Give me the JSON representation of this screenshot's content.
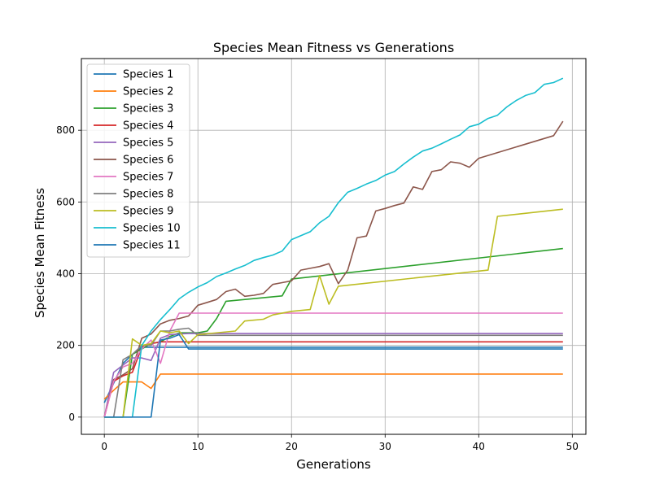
{
  "chart_data": {
    "type": "line",
    "title": "Species Mean Fitness vs Generations",
    "xlabel": "Generations",
    "ylabel": "Species Mean Fitness",
    "xlim": [
      -2.45,
      51.45
    ],
    "ylim": [
      -48,
      1000
    ],
    "xticks": [
      0,
      10,
      20,
      30,
      40,
      50
    ],
    "yticks": [
      0,
      200,
      400,
      600,
      800
    ],
    "grid": true,
    "legend_position": "upper-left",
    "series": [
      {
        "name": "Species 1",
        "color": "#1f77b4",
        "points": [
          [
            0,
            40
          ],
          [
            1,
            95
          ],
          [
            2,
            150
          ],
          [
            3,
            175
          ],
          [
            4,
            195
          ],
          [
            5,
            195
          ],
          [
            6,
            195
          ],
          [
            49,
            195
          ]
        ]
      },
      {
        "name": "Species 2",
        "color": "#ff7f0e",
        "points": [
          [
            0,
            50
          ],
          [
            1,
            75
          ],
          [
            2,
            98
          ],
          [
            3,
            98
          ],
          [
            4,
            98
          ],
          [
            5,
            80
          ],
          [
            6,
            120
          ],
          [
            49,
            120
          ]
        ]
      },
      {
        "name": "Species 3",
        "color": "#2ca02c",
        "points": [
          [
            0,
            0
          ],
          [
            1,
            0
          ],
          [
            2,
            0
          ],
          [
            3,
            175
          ],
          [
            4,
            190
          ],
          [
            5,
            205
          ],
          [
            6,
            210
          ],
          [
            7,
            225
          ],
          [
            8,
            235
          ],
          [
            9,
            235
          ],
          [
            10,
            235
          ],
          [
            11,
            240
          ],
          [
            12,
            275
          ],
          [
            13,
            323
          ],
          [
            19,
            338
          ],
          [
            20,
            385
          ],
          [
            49,
            470
          ]
        ]
      },
      {
        "name": "Species 4",
        "color": "#d62728",
        "points": [
          [
            0,
            0
          ],
          [
            1,
            100
          ],
          [
            2,
            115
          ],
          [
            3,
            125
          ],
          [
            4,
            195
          ],
          [
            5,
            205
          ],
          [
            6,
            210
          ],
          [
            7,
            210
          ],
          [
            49,
            210
          ]
        ]
      },
      {
        "name": "Species 5",
        "color": "#9467bd",
        "points": [
          [
            0,
            0
          ],
          [
            1,
            125
          ],
          [
            2,
            145
          ],
          [
            3,
            165
          ],
          [
            4,
            165
          ],
          [
            5,
            158
          ],
          [
            6,
            220
          ],
          [
            7,
            230
          ],
          [
            8,
            232
          ],
          [
            9,
            233
          ],
          [
            49,
            233
          ]
        ]
      },
      {
        "name": "Species 6",
        "color": "#8c564b",
        "points": [
          [
            0,
            0
          ],
          [
            1,
            105
          ],
          [
            2,
            118
          ],
          [
            3,
            135
          ],
          [
            4,
            220
          ],
          [
            5,
            232
          ],
          [
            6,
            260
          ],
          [
            7,
            270
          ],
          [
            8,
            275
          ],
          [
            9,
            282
          ],
          [
            10,
            312
          ],
          [
            11,
            320
          ],
          [
            12,
            328
          ],
          [
            13,
            350
          ],
          [
            14,
            357
          ],
          [
            15,
            337
          ],
          [
            16,
            340
          ],
          [
            17,
            345
          ],
          [
            18,
            370
          ],
          [
            19,
            375
          ],
          [
            20,
            380
          ],
          [
            21,
            410
          ],
          [
            22,
            415
          ],
          [
            23,
            420
          ],
          [
            24,
            428
          ],
          [
            25,
            372
          ],
          [
            26,
            410
          ],
          [
            27,
            500
          ],
          [
            28,
            505
          ],
          [
            29,
            575
          ],
          [
            30,
            582
          ],
          [
            31,
            590
          ],
          [
            32,
            597
          ],
          [
            33,
            642
          ],
          [
            34,
            635
          ],
          [
            35,
            685
          ],
          [
            36,
            690
          ],
          [
            37,
            712
          ],
          [
            38,
            708
          ],
          [
            39,
            697
          ],
          [
            40,
            722
          ],
          [
            48,
            785
          ],
          [
            49,
            825
          ]
        ]
      },
      {
        "name": "Species 7",
        "color": "#e377c2",
        "points": [
          [
            0,
            0
          ],
          [
            1,
            100
          ],
          [
            2,
            140
          ],
          [
            3,
            150
          ],
          [
            4,
            190
          ],
          [
            5,
            215
          ],
          [
            6,
            150
          ],
          [
            7,
            240
          ],
          [
            8,
            290
          ],
          [
            9,
            290
          ],
          [
            49,
            290
          ]
        ]
      },
      {
        "name": "Species 8",
        "color": "#7f7f7f",
        "points": [
          [
            0,
            0
          ],
          [
            1,
            0
          ],
          [
            2,
            160
          ],
          [
            3,
            175
          ],
          [
            4,
            200
          ],
          [
            5,
            200
          ],
          [
            6,
            240
          ],
          [
            7,
            240
          ],
          [
            8,
            245
          ],
          [
            9,
            248
          ],
          [
            10,
            228
          ],
          [
            49,
            228
          ]
        ]
      },
      {
        "name": "Species 9",
        "color": "#bcbd22",
        "points": [
          [
            0,
            0
          ],
          [
            1,
            0
          ],
          [
            2,
            0
          ],
          [
            3,
            218
          ],
          [
            4,
            200
          ],
          [
            5,
            205
          ],
          [
            6,
            240
          ],
          [
            7,
            235
          ],
          [
            8,
            240
          ],
          [
            9,
            205
          ],
          [
            10,
            230
          ],
          [
            14,
            240
          ],
          [
            15,
            268
          ],
          [
            17,
            273
          ],
          [
            18,
            285
          ],
          [
            20,
            295
          ],
          [
            22,
            300
          ],
          [
            23,
            395
          ],
          [
            24,
            315
          ],
          [
            25,
            365
          ],
          [
            41,
            410
          ],
          [
            42,
            560
          ],
          [
            49,
            580
          ]
        ]
      },
      {
        "name": "Species 10",
        "color": "#17becf",
        "points": [
          [
            0,
            0
          ],
          [
            1,
            0
          ],
          [
            2,
            0
          ],
          [
            3,
            0
          ],
          [
            4,
            200
          ],
          [
            5,
            240
          ],
          [
            6,
            272
          ],
          [
            7,
            300
          ],
          [
            8,
            330
          ],
          [
            9,
            348
          ],
          [
            10,
            363
          ],
          [
            11,
            375
          ],
          [
            12,
            392
          ],
          [
            13,
            402
          ],
          [
            14,
            413
          ],
          [
            15,
            423
          ],
          [
            16,
            437
          ],
          [
            17,
            445
          ],
          [
            18,
            452
          ],
          [
            19,
            463
          ],
          [
            20,
            495
          ],
          [
            21,
            506
          ],
          [
            22,
            517
          ],
          [
            23,
            542
          ],
          [
            24,
            560
          ],
          [
            25,
            598
          ],
          [
            26,
            627
          ],
          [
            27,
            638
          ],
          [
            28,
            650
          ],
          [
            29,
            660
          ],
          [
            30,
            675
          ],
          [
            31,
            685
          ],
          [
            32,
            706
          ],
          [
            33,
            725
          ],
          [
            34,
            742
          ],
          [
            35,
            750
          ],
          [
            36,
            762
          ],
          [
            37,
            775
          ],
          [
            38,
            787
          ],
          [
            39,
            810
          ],
          [
            40,
            817
          ],
          [
            41,
            833
          ],
          [
            42,
            842
          ],
          [
            43,
            865
          ],
          [
            44,
            883
          ],
          [
            45,
            897
          ],
          [
            46,
            905
          ],
          [
            47,
            928
          ],
          [
            48,
            933
          ],
          [
            49,
            945
          ]
        ]
      },
      {
        "name": "Species 11",
        "color": "#1f77b4",
        "points": [
          [
            0,
            0
          ],
          [
            1,
            0
          ],
          [
            2,
            0
          ],
          [
            3,
            0
          ],
          [
            4,
            0
          ],
          [
            5,
            0
          ],
          [
            6,
            215
          ],
          [
            7,
            220
          ],
          [
            8,
            230
          ],
          [
            9,
            190
          ],
          [
            10,
            190
          ],
          [
            49,
            190
          ]
        ]
      }
    ]
  }
}
